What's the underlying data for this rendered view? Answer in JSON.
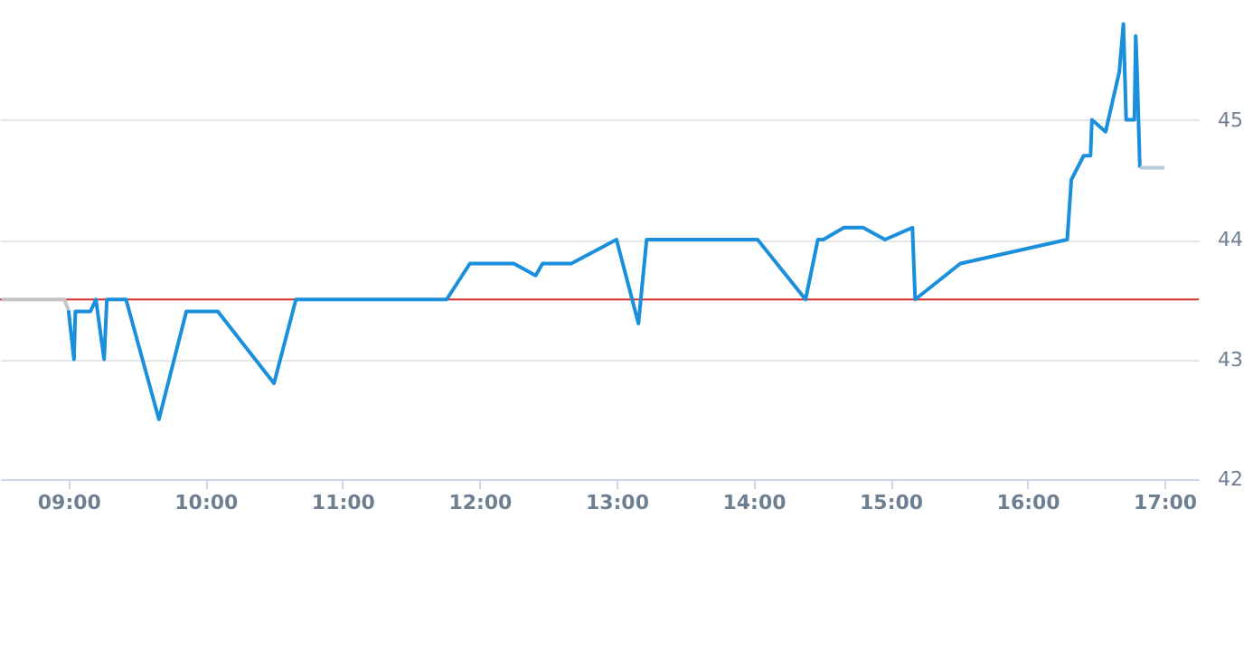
{
  "chart_data": {
    "type": "line",
    "series": [
      {
        "color": "#c4c4c4",
        "x": [
          8.51,
          8.97,
          9.0
        ],
        "values": [
          43.5,
          43.5,
          43.41
        ]
      },
      {
        "color": "#1a8fdc",
        "x": [
          9.0,
          9.04,
          9.05,
          9.16,
          9.2,
          9.26,
          9.28,
          9.42,
          9.66,
          9.86,
          10.09,
          10.5,
          10.66,
          11.76,
          11.93,
          12.25,
          12.41,
          12.46,
          12.67,
          13.0,
          13.16,
          13.22,
          14.03,
          14.38,
          14.47,
          14.51,
          14.66,
          14.8,
          14.96,
          15.16,
          15.18,
          15.51,
          16.29,
          16.32,
          16.41,
          16.46,
          16.47,
          16.57,
          16.67,
          16.7,
          16.72,
          16.78,
          16.79,
          16.8,
          16.82
        ],
        "values": [
          43.41,
          43.0,
          43.4,
          43.4,
          43.5,
          43.0,
          43.5,
          43.5,
          42.5,
          43.4,
          43.4,
          42.8,
          43.5,
          43.5,
          43.8,
          43.8,
          43.7,
          43.8,
          43.8,
          44.0,
          43.3,
          44.0,
          44.0,
          43.5,
          44.0,
          44.0,
          44.1,
          44.1,
          44.0,
          44.1,
          43.5,
          43.8,
          44.0,
          44.5,
          44.7,
          44.7,
          45.0,
          44.9,
          45.4,
          45.8,
          45.0,
          45.0,
          45.7,
          45.4,
          44.6
        ]
      },
      {
        "color": "#b8c8d8",
        "x": [
          16.82,
          17.0
        ],
        "values": [
          44.6,
          44.6
        ]
      }
    ],
    "xlim": [
      8.5,
      17.25
    ],
    "xticks": [
      {
        "value": 9,
        "label": "09:00"
      },
      {
        "value": 10,
        "label": "10:00"
      },
      {
        "value": 11,
        "label": "11:00"
      },
      {
        "value": 12,
        "label": "12:00"
      },
      {
        "value": 13,
        "label": "13:00"
      },
      {
        "value": 14,
        "label": "14:00"
      },
      {
        "value": 15,
        "label": "15:00"
      },
      {
        "value": 16,
        "label": "16:00"
      },
      {
        "value": 17,
        "label": "17:00"
      }
    ],
    "ylim": [
      42,
      46
    ],
    "yticks": [
      42,
      43,
      44,
      45
    ],
    "ref_lines": [
      {
        "axis": "y",
        "value": 43.5,
        "color": "#d62b2b"
      }
    ],
    "grid": "y",
    "marker": "none",
    "line_style": "solid"
  }
}
